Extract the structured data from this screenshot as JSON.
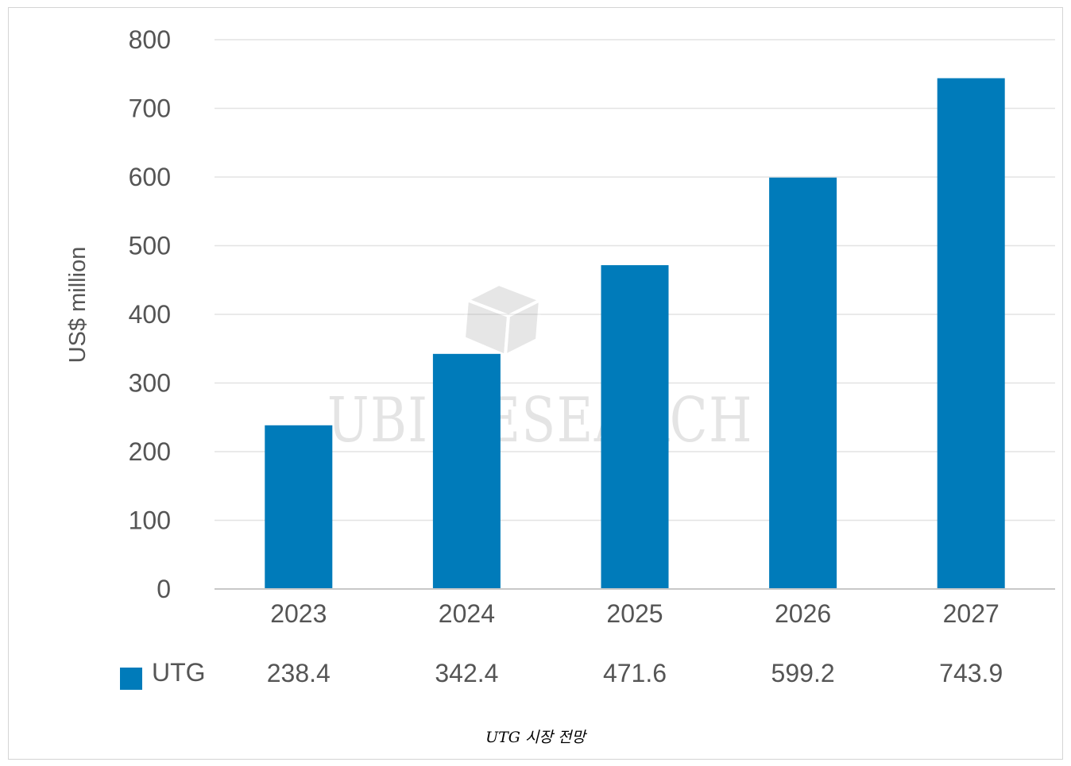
{
  "chart_data": {
    "type": "bar",
    "categories": [
      "2023",
      "2024",
      "2025",
      "2026",
      "2027"
    ],
    "series": [
      {
        "name": "UTG",
        "values": [
          238.4,
          342.4,
          471.6,
          599.2,
          743.9
        ],
        "value_labels": [
          "238.4",
          "342.4",
          "471.6",
          "599.2",
          "743.9"
        ],
        "color": "#007bba"
      }
    ],
    "ylabel": "US$ million",
    "ylim": [
      0,
      800
    ],
    "yticks": [
      "0",
      "100",
      "200",
      "300",
      "400",
      "500",
      "600",
      "700",
      "800"
    ],
    "grid": true,
    "legend": "data-table-bottom-left"
  },
  "watermark": {
    "text": "UBI RESEARCH"
  },
  "caption": "UTG 시장 전망",
  "colors": {
    "bar": "#007bba",
    "grid": "#e3e3e3",
    "axis": "#c8c8c8",
    "text": "#555555"
  }
}
